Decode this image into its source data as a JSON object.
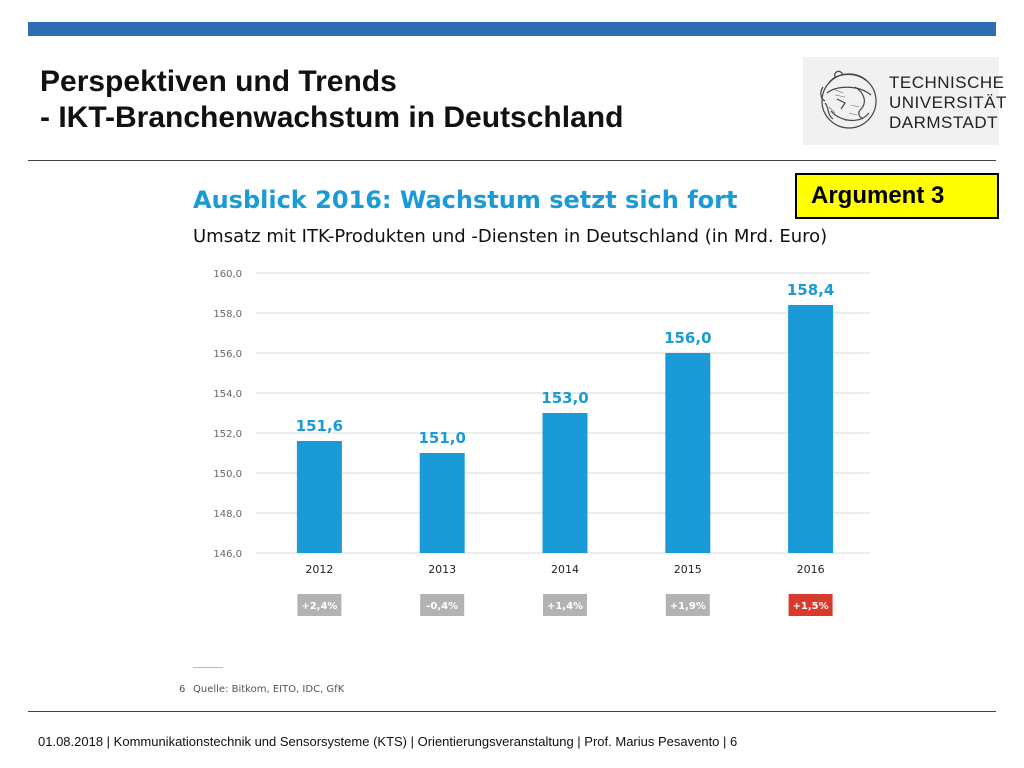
{
  "slide": {
    "title_line1": "Perspektiven und Trends",
    "title_line2": "- IKT-Branchenwachstum in Deutschland"
  },
  "logo": {
    "line1": "TECHNISCHE",
    "line2": "UNIVERSITÄT",
    "line3": "DARMSTADT"
  },
  "argument_label": "Argument 3",
  "chart_data": {
    "type": "bar",
    "title": "Ausblick 2016: Wachstum setzt sich fort",
    "subtitle": "Umsatz mit ITK-Produkten und -Diensten in Deutschland (in Mrd. Euro)",
    "categories": [
      "2012",
      "2013",
      "2014",
      "2015",
      "2016"
    ],
    "values": [
      151.6,
      151.0,
      153.0,
      156.0,
      158.4
    ],
    "value_labels": [
      "151,6",
      "151,0",
      "153,0",
      "156,0",
      "158,4"
    ],
    "ylim": [
      146,
      160
    ],
    "yticks": [
      "146,0",
      "148,0",
      "150,0",
      "152,0",
      "154,0",
      "156,0",
      "158,0",
      "160,0"
    ],
    "growth": [
      "+2,4%",
      "-0,4%",
      "+1,4%",
      "+1,9%",
      "+1,5%"
    ],
    "growth_colors": [
      "#b3b3b3",
      "#b3b3b3",
      "#b3b3b3",
      "#b3b3b3",
      "#d83a2c"
    ],
    "bar_color": "#1a9bd7",
    "label_color": "#1a9bd7",
    "grid": true
  },
  "source": {
    "page_number": "6",
    "text": "Quelle: Bitkom, EITO, IDC, GfK"
  },
  "footer": {
    "text": "01.08.2018  |  Kommunikationstechnik und Sensorsysteme (KTS) | Orientierungsveranstaltung |  Prof. Marius Pesavento  |  6"
  }
}
